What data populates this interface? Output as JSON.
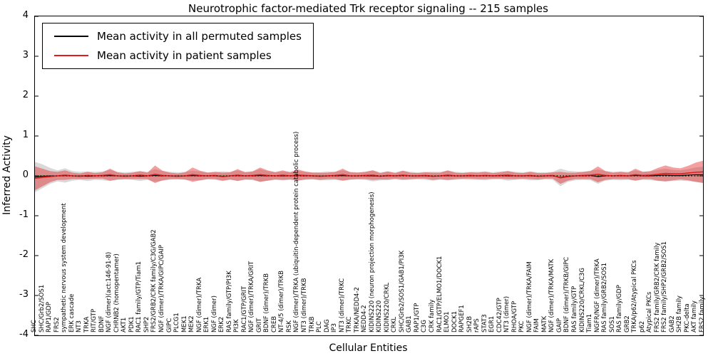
{
  "chart_data": {
    "type": "line",
    "title": "Neurotrophic factor-mediated Trk receptor signaling -- 215 samples",
    "xlabel": "Cellular Entities",
    "ylabel": "Inferred Activity",
    "ylim": [
      -4,
      4
    ],
    "yticks": [
      4,
      3,
      2,
      1,
      0,
      -1,
      -2,
      -3,
      -4
    ],
    "grid": false,
    "legend_position": "upper left",
    "zero_line": {
      "color": "#008000",
      "style": "dotted",
      "y": 0
    },
    "legend": [
      {
        "label": "Mean activity in all permuted samples",
        "color": "#000000"
      },
      {
        "label": "Mean activity in patient samples",
        "color": "#e41a1c"
      }
    ],
    "categories": [
      "SHC",
      "SHC/Grb2/SOS1",
      "RAP1/GDP",
      "FRS2",
      "sympathetic nervous system development",
      "ERK cascade",
      "NT3",
      "TRKA",
      "RIT/GTP",
      "BDNF",
      "NGF (dimer)(act:146-91-8)",
      "CHRNB2 (homopentamer)",
      "AKT1",
      "PDK1",
      "RAC1 family/GTP/Tiam1",
      "SHP2",
      "FRS2/GRB2/CRK family/C3G/GAB2",
      "NGF (dimer)/TRKA/GIPC/GAIP",
      "GIPC",
      "PLCG1",
      "MEK1",
      "MEK2",
      "NGF (dimer)/TRKA",
      "ERK1",
      "NGF (dimer)",
      "ERK2",
      "RAS family/GTP/PI3K",
      "PI3K",
      "RAC1/GTP/GRIT",
      "NGF (dimer)/TRKA/GRIT",
      "GRIT",
      "BDNF (dimer)/TRKB",
      "CREB",
      "NT-4/5 (dimer)/TRKB",
      "RSK",
      "NGF (dimer)/TRKA (ubiquitin-dependent protein catabolic process)",
      "NT3 (dimer)/TRKB",
      "TRKB",
      "PLC",
      "DAG",
      "IP3",
      "NT3 (dimer)/TRKC",
      "TRKC",
      "TRKA/NEDD4-2",
      "NEDD4-2",
      "KIDINS220 (neuron projection morphogenesis)",
      "KIDINS220",
      "KIDINS220/CRKL",
      "CRKL",
      "SHC/Grb2/SOS1/GAB1/PI3K",
      "GAB1",
      "RAP1/GTP",
      "C3G",
      "CRK family",
      "RAC1/GTP/ELMO1/DOCK1",
      "ELMO1",
      "DOCK1",
      "RAPGEF1",
      "SH2B",
      "rAPS",
      "STAT3",
      "EGR1",
      "CDC42/GTP",
      "NT3 (dimer)",
      "RHOA/GTP",
      "PKC",
      "NGF (dimer)/TRKA/FAIM",
      "FAIM",
      "MATK",
      "NGF (dimer)/TRKA/MATK",
      "GAIP",
      "BDNF (dimer)/TRKB/GIPC",
      "RAS family/GTP",
      "KIDINS220/CRKL/C3G",
      "Tiam1",
      "NGFR/NGF (dimer)/TRKA",
      "RAS family/GRB2/SOS1",
      "SOS1",
      "RAS family/GDP",
      "GRB2",
      "TRKA/p62/Atypical PKCs",
      "p62",
      "Atypical PKCs",
      "FRS2 family/GRB2/CRK family",
      "FRS2 family/SHP2/GRB2/SOS1",
      "GAB2",
      "SH2B family",
      "PKC-delta",
      "AKT family",
      "FRS2 family"
    ],
    "series": [
      {
        "name": "Mean activity in all permuted samples",
        "color": "#000000",
        "band_color": "#b3b3b3",
        "values": [
          -0.03,
          -0.01,
          0,
          0,
          0.01,
          0,
          0,
          -0.01,
          0,
          0,
          0.01,
          0,
          0,
          0,
          -0.01,
          0,
          0.01,
          0,
          0,
          0,
          0,
          0.01,
          0,
          0,
          0,
          -0.01,
          0,
          0.01,
          0,
          0,
          0.01,
          0,
          0,
          0,
          0,
          0.01,
          0,
          0,
          -0.01,
          0,
          0,
          0.01,
          0,
          0,
          0,
          0,
          -0.01,
          0,
          0,
          0.01,
          0,
          0,
          0,
          -0.01,
          0,
          0.01,
          0,
          0,
          0,
          0,
          0,
          0,
          0.01,
          0,
          0,
          0,
          0,
          -0.01,
          0,
          0,
          -0.04,
          -0.01,
          0,
          0,
          0.01,
          -0.02,
          0,
          0,
          0,
          0,
          0.01,
          0,
          0,
          0.01,
          0.02,
          0.01,
          0.01,
          0.02,
          0.03,
          0.03
        ],
        "band_halfwidth": [
          0.38,
          0.3,
          0.2,
          0.14,
          0.18,
          0.12,
          0.1,
          0.12,
          0.1,
          0.11,
          0.14,
          0.1,
          0.09,
          0.1,
          0.12,
          0.1,
          0.16,
          0.12,
          0.1,
          0.09,
          0.1,
          0.12,
          0.11,
          0.09,
          0.1,
          0.12,
          0.1,
          0.13,
          0.1,
          0.11,
          0.16,
          0.12,
          0.1,
          0.11,
          0.1,
          0.12,
          0.1,
          0.09,
          0.1,
          0.11,
          0.1,
          0.13,
          0.1,
          0.09,
          0.1,
          0.14,
          0.1,
          0.11,
          0.09,
          0.12,
          0.1,
          0.09,
          0.1,
          0.11,
          0.1,
          0.12,
          0.1,
          0.09,
          0.1,
          0.1,
          0.11,
          0.09,
          0.1,
          0.12,
          0.1,
          0.09,
          0.11,
          0.1,
          0.09,
          0.1,
          0.22,
          0.14,
          0.11,
          0.1,
          0.12,
          0.18,
          0.12,
          0.1,
          0.11,
          0.1,
          0.13,
          0.1,
          0.11,
          0.14,
          0.16,
          0.14,
          0.13,
          0.15,
          0.18,
          0.2
        ]
      },
      {
        "name": "Mean activity in patient samples",
        "color": "#e41a1c",
        "band_color": "#e41a1c",
        "values": [
          -0.06,
          -0.04,
          -0.02,
          0,
          0.02,
          0,
          -0.01,
          0.01,
          0,
          0.01,
          0.03,
          0,
          -0.01,
          0,
          0.02,
          0,
          0.04,
          0.01,
          0,
          -0.01,
          0,
          0.03,
          0.01,
          0,
          0.01,
          -0.02,
          0,
          0.02,
          0,
          0.01,
          0.03,
          0.01,
          0,
          0.02,
          0,
          0.02,
          0.01,
          0,
          -0.01,
          0,
          0.01,
          0.03,
          0,
          0,
          0.01,
          0.02,
          -0.01,
          0.01,
          0,
          0.02,
          0,
          0,
          0.01,
          -0.01,
          0,
          0.02,
          0,
          0,
          0.01,
          0,
          0.01,
          0,
          0.01,
          0.02,
          0,
          0,
          0.01,
          -0.01,
          0,
          0.01,
          -0.05,
          -0.02,
          0,
          0.01,
          0.02,
          0.04,
          0.01,
          0,
          0.01,
          0,
          0.03,
          0.01,
          0.02,
          0.04,
          0.06,
          0.05,
          0.05,
          0.07,
          0.09,
          0.1
        ],
        "band_halfwidth": [
          0.3,
          0.22,
          0.14,
          0.1,
          0.12,
          0.08,
          0.07,
          0.09,
          0.07,
          0.08,
          0.15,
          0.09,
          0.07,
          0.08,
          0.1,
          0.08,
          0.22,
          0.12,
          0.08,
          0.07,
          0.09,
          0.18,
          0.12,
          0.08,
          0.09,
          0.1,
          0.09,
          0.15,
          0.09,
          0.1,
          0.18,
          0.13,
          0.09,
          0.12,
          0.09,
          0.14,
          0.1,
          0.08,
          0.09,
          0.08,
          0.09,
          0.15,
          0.09,
          0.08,
          0.09,
          0.12,
          0.08,
          0.1,
          0.07,
          0.11,
          0.08,
          0.07,
          0.08,
          0.09,
          0.08,
          0.12,
          0.08,
          0.07,
          0.08,
          0.08,
          0.09,
          0.07,
          0.08,
          0.1,
          0.08,
          0.07,
          0.09,
          0.08,
          0.07,
          0.08,
          0.15,
          0.1,
          0.08,
          0.09,
          0.1,
          0.2,
          0.11,
          0.08,
          0.09,
          0.08,
          0.15,
          0.09,
          0.1,
          0.16,
          0.2,
          0.16,
          0.14,
          0.18,
          0.24,
          0.28
        ]
      }
    ]
  }
}
